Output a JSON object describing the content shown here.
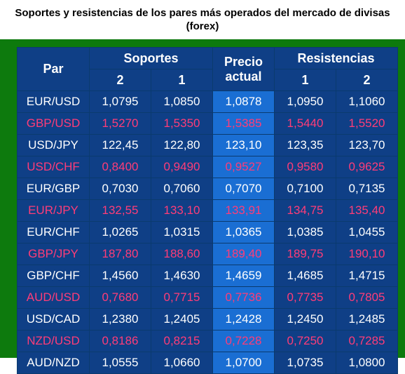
{
  "title": {
    "line1": "Soportes y resistencias de los pares más operados del mercado de divisas",
    "line2": "(forex)"
  },
  "headers": {
    "par": "Par",
    "soportes": "Soportes",
    "precio_line1": "Precio",
    "precio_line2": "actual",
    "resistencias": "Resistencias",
    "s2": "2",
    "s1": "1",
    "r1": "1",
    "r2": "2"
  },
  "colors": {
    "header_bg": "#0f3f86",
    "precio_bg": "#1a6ed3",
    "frame": "#0d7a0d",
    "text_white": "#ffffff",
    "text_pink": "#ff3c78"
  },
  "rows": [
    {
      "par": "EUR/USD",
      "s2": "1,0795",
      "s1": "1,0850",
      "precio": "1,0878",
      "r1": "1,0950",
      "r2": "1,1060"
    },
    {
      "par": "GBP/USD",
      "s2": "1,5270",
      "s1": "1,5350",
      "precio": "1,5385",
      "r1": "1,5440",
      "r2": "1,5520"
    },
    {
      "par": "USD/JPY",
      "s2": "122,45",
      "s1": "122,80",
      "precio": "123,10",
      "r1": "123,35",
      "r2": "123,70"
    },
    {
      "par": "USD/CHF",
      "s2": "0,8400",
      "s1": "0,9490",
      "precio": "0,9527",
      "r1": "0,9580",
      "r2": "0,9625"
    },
    {
      "par": "EUR/GBP",
      "s2": "0,7030",
      "s1": "0,7060",
      "precio": "0,7070",
      "r1": "0,7100",
      "r2": "0,7135"
    },
    {
      "par": "EUR/JPY",
      "s2": "132,55",
      "s1": "133,10",
      "precio": "133,91",
      "r1": "134,75",
      "r2": "135,40"
    },
    {
      "par": "EUR/CHF",
      "s2": "1,0265",
      "s1": "1,0315",
      "precio": "1,0365",
      "r1": "1,0385",
      "r2": "1,0455"
    },
    {
      "par": "GBP/JPY",
      "s2": "187,80",
      "s1": "188,60",
      "precio": "189,40",
      "r1": "189,75",
      "r2": "190,10"
    },
    {
      "par": "GBP/CHF",
      "s2": "1,4560",
      "s1": "1,4630",
      "precio": "1,4659",
      "r1": "1,4685",
      "r2": "1,4715"
    },
    {
      "par": "AUD/USD",
      "s2": "0,7680",
      "s1": "0,7715",
      "precio": "0,7736",
      "r1": "0,7735",
      "r2": "0,7805"
    },
    {
      "par": "USD/CAD",
      "s2": "1,2380",
      "s1": "1,2405",
      "precio": "1,2428",
      "r1": "1,2450",
      "r2": "1,2485"
    },
    {
      "par": "NZD/USD",
      "s2": "0,8186",
      "s1": "0,8215",
      "precio": "0,7228",
      "r1": "0,7250",
      "r2": "0,7285"
    },
    {
      "par": "AUD/NZD",
      "s2": "1,0555",
      "s1": "1,0660",
      "precio": "1,0700",
      "r1": "1,0735",
      "r2": "1,0800"
    }
  ]
}
